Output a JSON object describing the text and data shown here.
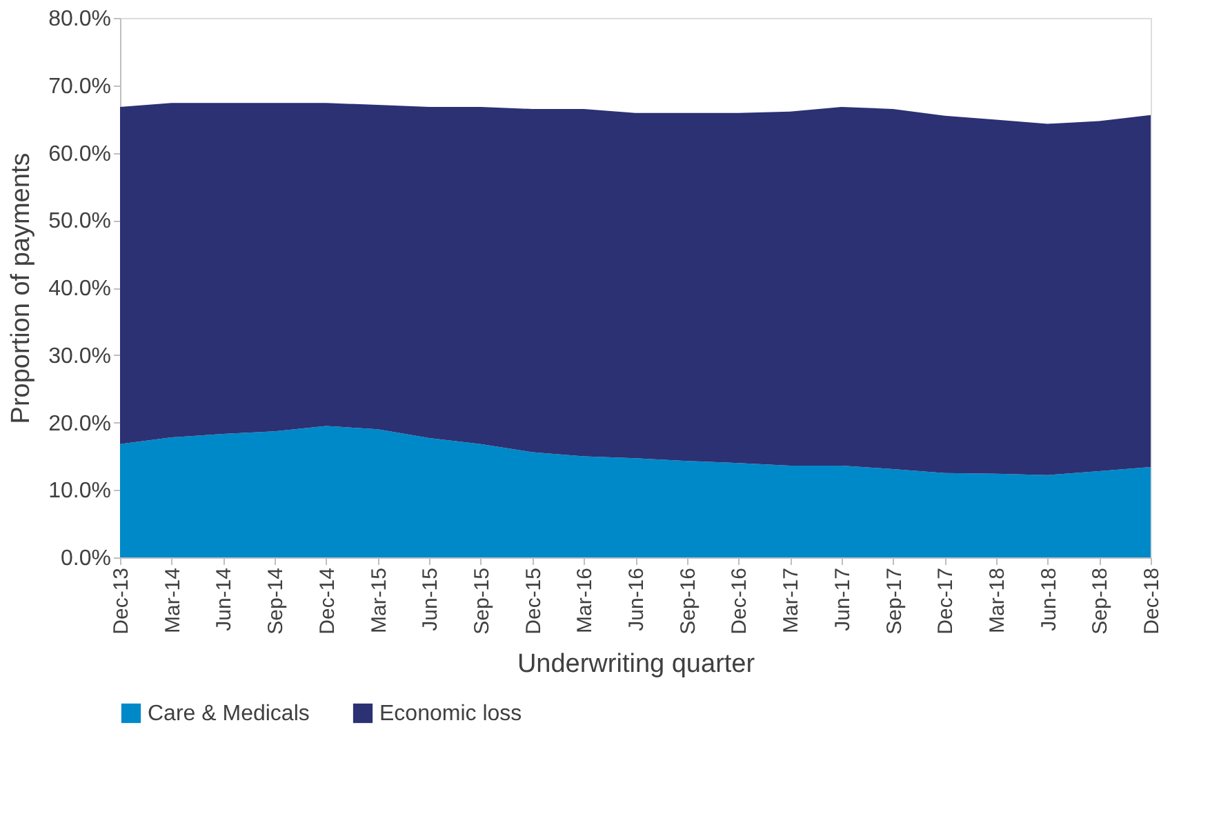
{
  "chart_data": {
    "type": "area",
    "stacked": true,
    "xlabel": "Underwriting quarter",
    "ylabel": "Proportion of payments",
    "categories": [
      "Dec-13",
      "Mar-14",
      "Jun-14",
      "Sep-14",
      "Dec-14",
      "Mar-15",
      "Jun-15",
      "Sep-15",
      "Dec-15",
      "Mar-16",
      "Jun-16",
      "Sep-16",
      "Dec-16",
      "Mar-17",
      "Jun-17",
      "Sep-17",
      "Dec-17",
      "Mar-18",
      "Jun-18",
      "Sep-18",
      "Dec-18"
    ],
    "series": [
      {
        "name": "Care & Medicals",
        "color": "#0089c8",
        "values": [
          16.8,
          17.8,
          18.3,
          18.7,
          19.5,
          19.0,
          17.7,
          16.8,
          15.6,
          15.0,
          14.7,
          14.3,
          14.0,
          13.6,
          13.6,
          13.1,
          12.5,
          12.4,
          12.2,
          12.8,
          13.4
        ]
      },
      {
        "name": "Economic loss",
        "color": "#2b3173",
        "values": [
          50.0,
          49.6,
          49.1,
          48.7,
          47.9,
          48.1,
          49.1,
          50.0,
          50.9,
          51.5,
          51.2,
          51.6,
          51.9,
          52.5,
          53.2,
          53.4,
          53.0,
          52.5,
          52.1,
          51.9,
          52.2
        ]
      }
    ],
    "ylim": [
      0,
      80
    ],
    "yticks": [
      {
        "value": 0,
        "label": "0.0%"
      },
      {
        "value": 10,
        "label": "10.0%"
      },
      {
        "value": 20,
        "label": "20.0%"
      },
      {
        "value": 30,
        "label": "30.0%"
      },
      {
        "value": 40,
        "label": "40.0%"
      },
      {
        "value": 50,
        "label": "50.0%"
      },
      {
        "value": 60,
        "label": "60.0%"
      },
      {
        "value": 70,
        "label": "70.0%"
      },
      {
        "value": 80,
        "label": "80.0%"
      }
    ],
    "grid": false,
    "legend": "bottom"
  }
}
